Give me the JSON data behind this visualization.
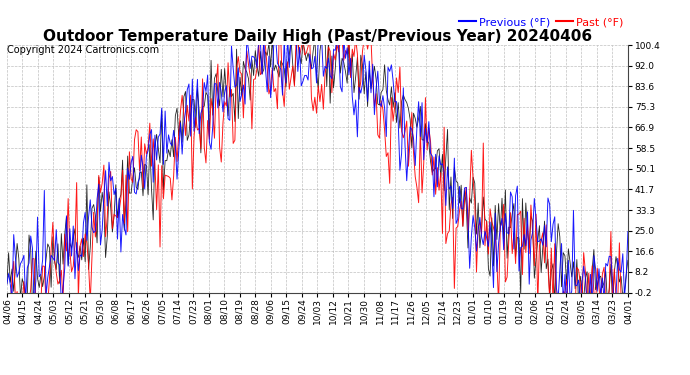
{
  "title": "Outdoor Temperature Daily High (Past/Previous Year) 20240406",
  "copyright": "Copyright 2024 Cartronics.com",
  "legend_previous": "Previous (°F)",
  "legend_past": "Past (°F)",
  "ylabel_right_ticks": [
    100.4,
    92.0,
    83.6,
    75.3,
    66.9,
    58.5,
    50.1,
    41.7,
    33.3,
    25.0,
    16.6,
    8.2,
    -0.2
  ],
  "ylim": [
    -0.2,
    100.4
  ],
  "background_color": "#ffffff",
  "grid_color": "#b0b0b0",
  "line_color_previous": "blue",
  "line_color_past": "red",
  "line_color_current": "black",
  "title_fontsize": 11,
  "tick_label_fontsize": 6.5,
  "copyright_fontsize": 7,
  "legend_fontsize": 8,
  "x_tick_labels": [
    "04/06",
    "04/15",
    "04/24",
    "05/03",
    "05/12",
    "05/21",
    "05/30",
    "06/08",
    "06/17",
    "06/26",
    "07/05",
    "07/14",
    "07/23",
    "08/01",
    "08/10",
    "08/19",
    "08/28",
    "09/06",
    "09/15",
    "09/24",
    "10/03",
    "10/12",
    "10/21",
    "10/30",
    "11/08",
    "11/17",
    "11/26",
    "12/05",
    "12/14",
    "12/23",
    "01/01",
    "01/10",
    "01/19",
    "01/28",
    "02/06",
    "02/15",
    "02/24",
    "03/05",
    "03/14",
    "03/23",
    "04/01"
  ],
  "n_points": 366,
  "seed": 12345
}
